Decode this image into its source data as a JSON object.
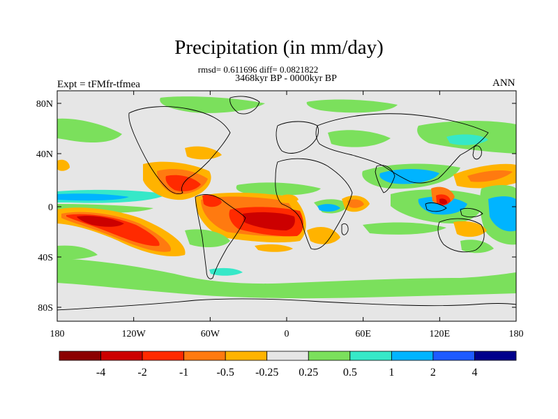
{
  "title": "Precipitation (in mm/day)",
  "stats": "rmsd= 0.611696 diff= 0.0821822",
  "period": "3468kyr BP - 0000kyr BP",
  "experiment": "Expt = tFMfr-tfmea",
  "season": "ANN",
  "map": {
    "lat_ticks": [
      "80N",
      "40N",
      "0",
      "40S",
      "80S"
    ],
    "lon_ticks": [
      "180",
      "120W",
      "60W",
      "0",
      "60E",
      "120E",
      "180"
    ],
    "background_color": "#e6e6e6"
  },
  "colorbar": {
    "colors": [
      "#8b0000",
      "#cc0000",
      "#ff2a00",
      "#ff7a10",
      "#ffb300",
      "#e6e6e6",
      "#7be05c",
      "#36e8c8",
      "#00b4ff",
      "#1e5bff",
      "#00008b"
    ],
    "labels": [
      "-4",
      "-2",
      "-1",
      "-0.5",
      "-0.25",
      "0.25",
      "0.5",
      "1",
      "2",
      "4"
    ]
  }
}
